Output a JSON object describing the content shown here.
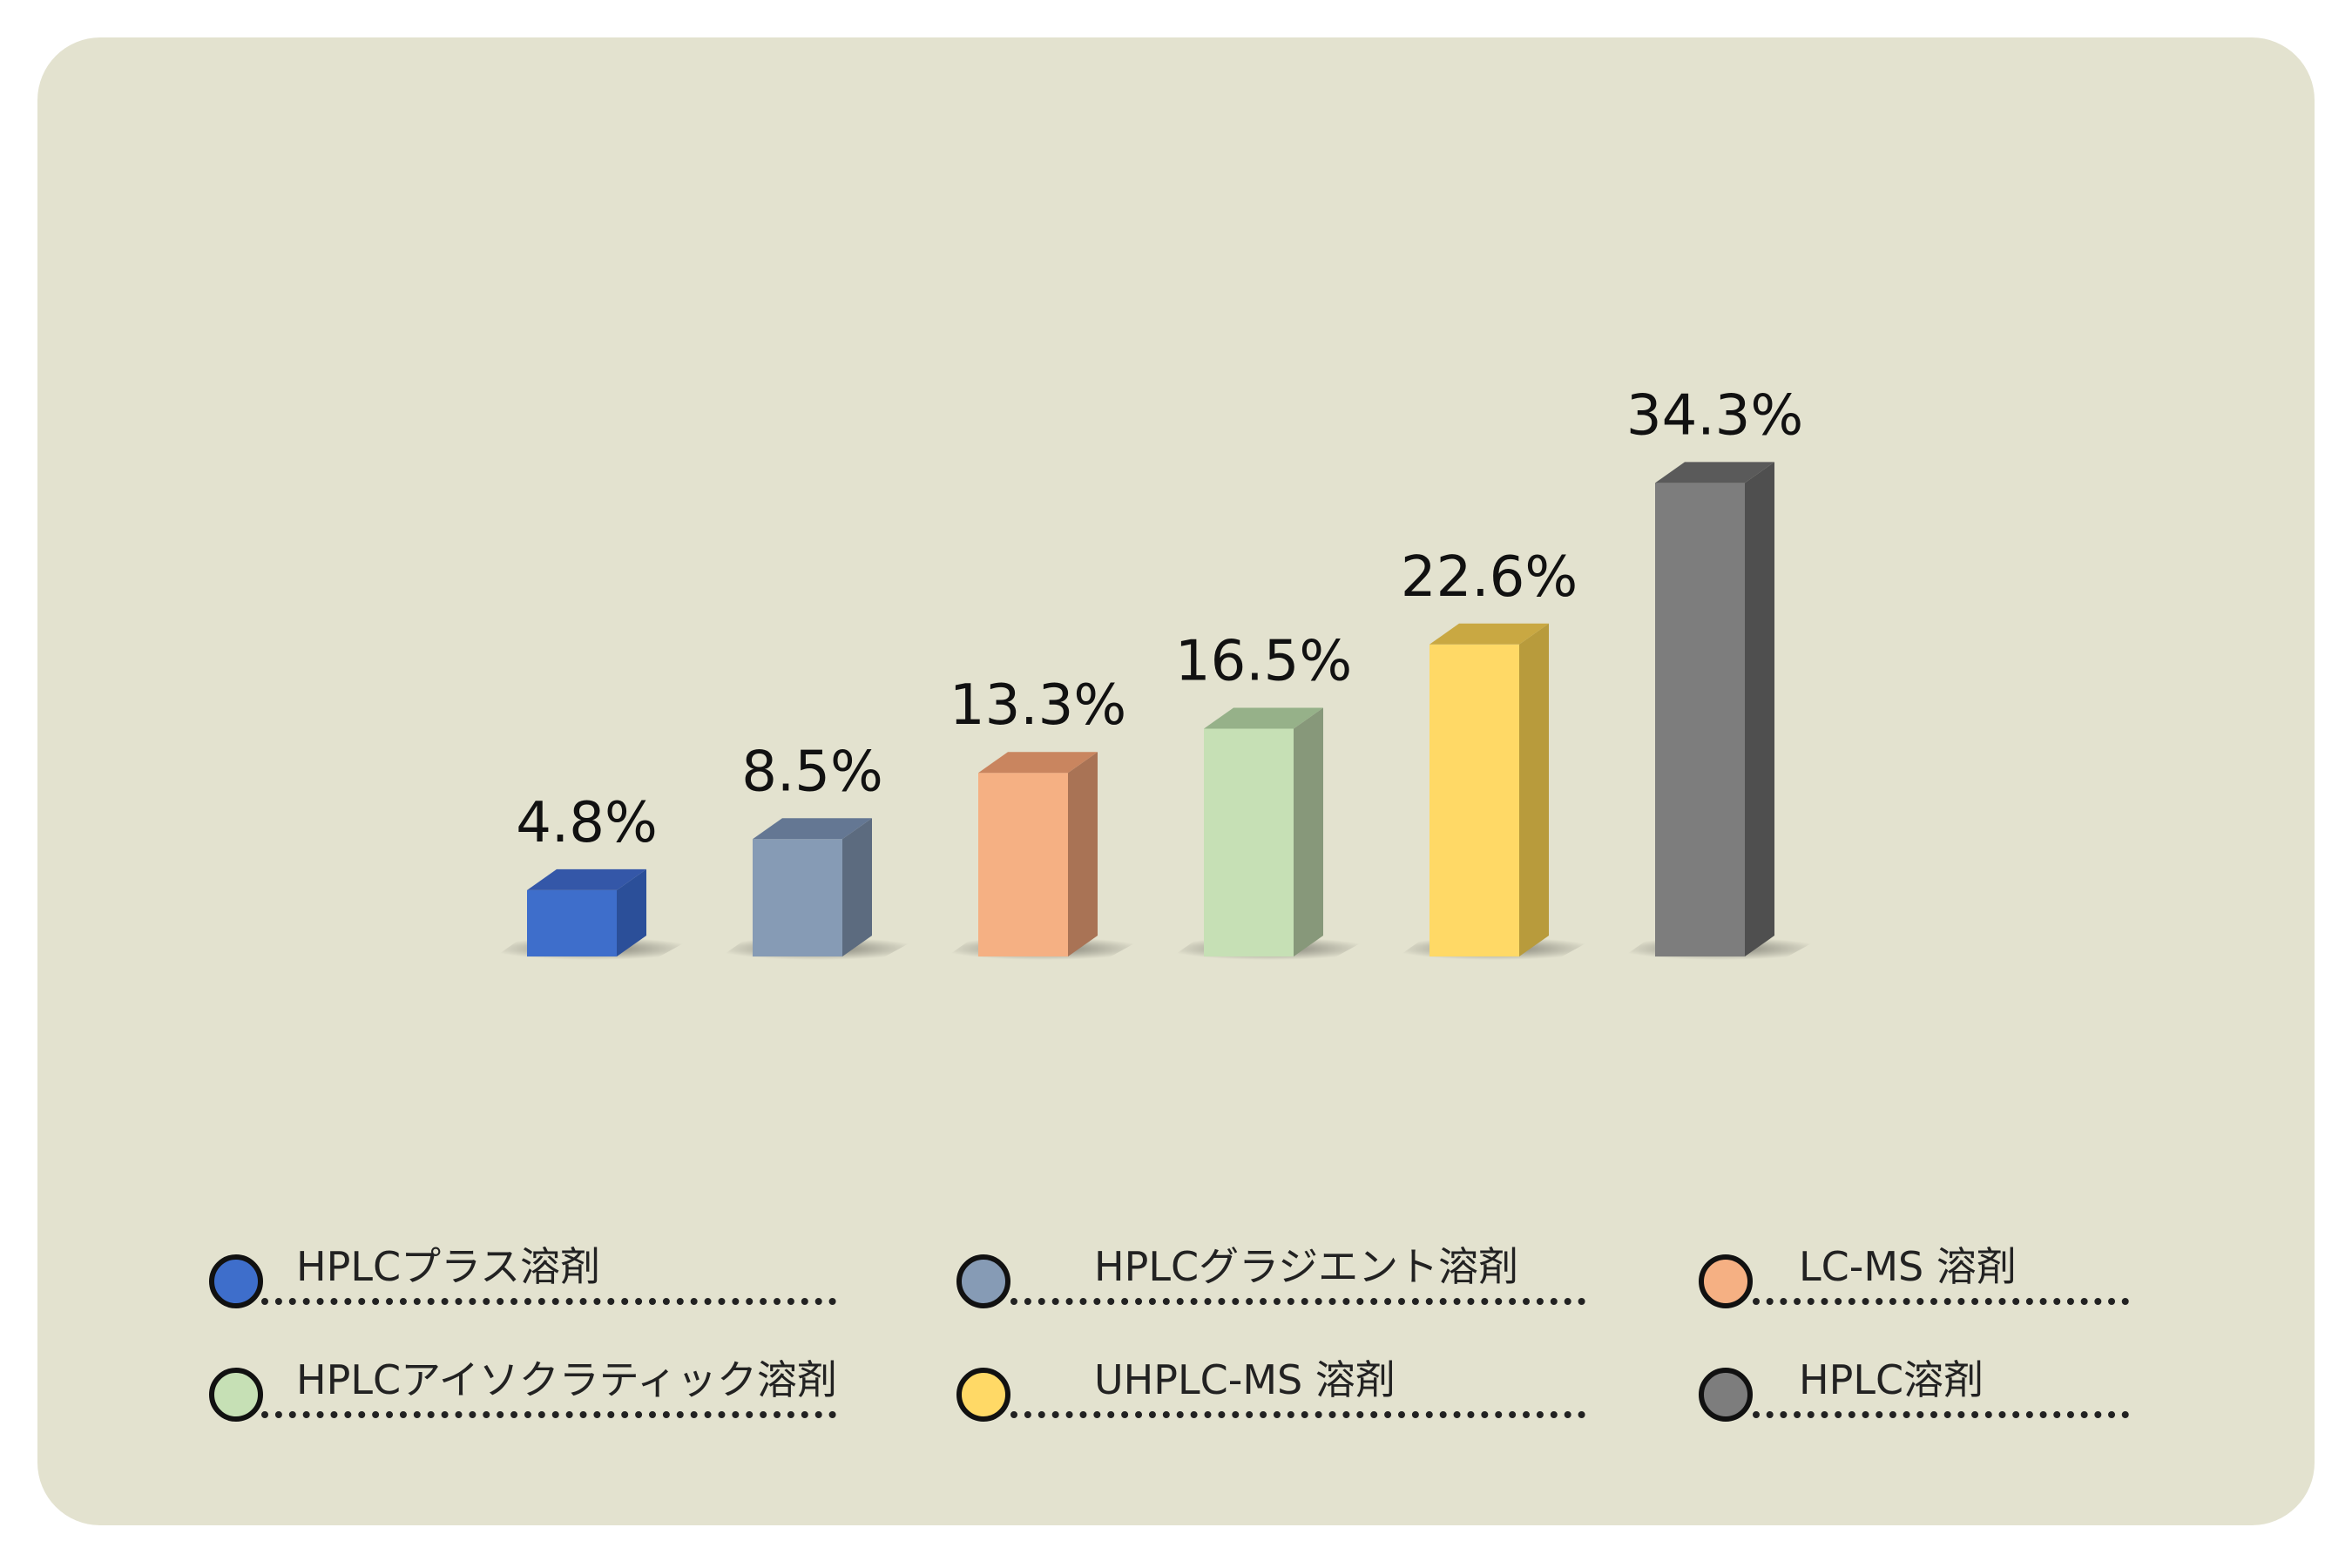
{
  "chart_data": {
    "type": "bar",
    "categories": [
      "HPLCプラス溶剤",
      "HPLCグラジエント溶剤",
      "LC-MS 溶剤",
      "HPLCアイソクラティック溶剤",
      "UHPLC-MS 溶剤",
      "HPLC溶剤"
    ],
    "values": [
      4.8,
      8.5,
      13.3,
      16.5,
      22.6,
      34.3
    ],
    "value_labels": [
      "4.8%",
      "8.5%",
      "13.3%",
      "16.5%",
      "22.6%",
      "34.3%"
    ],
    "unit": "%",
    "colors": [
      "#3e6ecb",
      "#869bb5",
      "#f5b083",
      "#c6e0b5",
      "#ffd966",
      "#7d7d7d"
    ],
    "side_colors": [
      "#2b4f99",
      "#5c6b7f",
      "#a97355",
      "#87987a",
      "#b89b3c",
      "#4f4f4f"
    ],
    "top_colors": [
      "#3457a8",
      "#647793",
      "#c9855f",
      "#96b189",
      "#c9a842",
      "#5a5a5a"
    ],
    "title": "",
    "xlabel": "",
    "ylabel": "",
    "grid": false,
    "legend_position": "bottom",
    "style": "3d-bar"
  },
  "legend": {
    "items": [
      {
        "label": "HPLCプラス溶剤",
        "color": "#3e6ecb"
      },
      {
        "label": "HPLCグラジエント溶剤",
        "color": "#869bb5"
      },
      {
        "label": "LC-MS 溶剤",
        "color": "#f5b083"
      },
      {
        "label": "HPLCアイソクラティック溶剤",
        "color": "#c6e0b5"
      },
      {
        "label": "UHPLC-MS 溶剤",
        "color": "#ffd966"
      },
      {
        "label": "HPLC溶剤",
        "color": "#7d7d7d"
      }
    ]
  },
  "colors": {
    "panel_background": "#e3e2cf",
    "text": "#111111"
  }
}
